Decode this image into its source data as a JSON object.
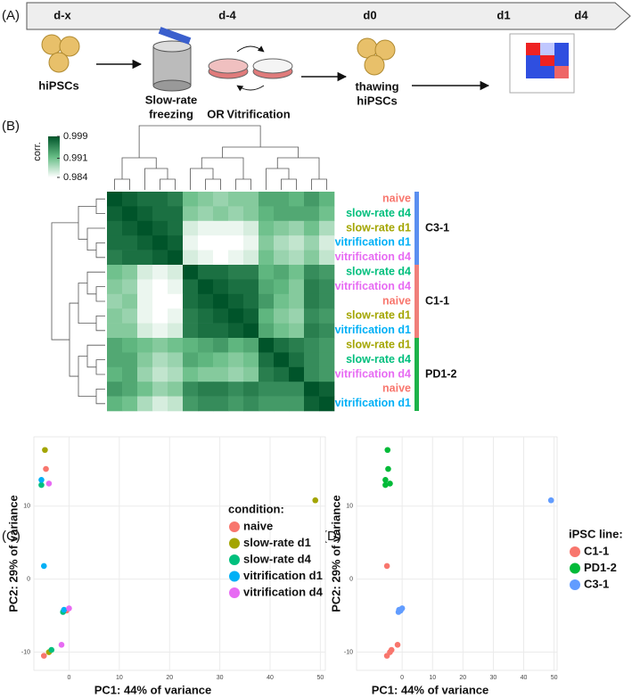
{
  "panel_a": {
    "label": "(A)",
    "timeline": [
      "d-x",
      "d-4",
      "d0",
      "d1",
      "d4"
    ],
    "start": "hiPSCs",
    "freezing": [
      "Slow-rate",
      "freezing"
    ],
    "or": "OR",
    "vitrification": "Vitrification",
    "thawing": [
      "thawing",
      "hiPSCs"
    ]
  },
  "chart_data": [
    {
      "type": "heatmap",
      "panel": "(B)",
      "colorbar_title": "corr.",
      "clim": [
        0.984,
        0.999
      ],
      "cticks": [
        0.999,
        0.991,
        0.984
      ],
      "colors": [
        "#ffffff",
        "#66bd85",
        "#00542a"
      ],
      "groups": [
        {
          "name": "C3-1",
          "color": "#5b8ff0",
          "categories": [
            "naive",
            "slow-rate d4",
            "slow-rate d1",
            "vitrification d1",
            "vitrification d4"
          ],
          "label_colors": [
            "#f8766d",
            "#00bf7d",
            "#a3a500",
            "#00b0f6",
            "#e76bf3"
          ],
          "values": [
            [
              0.999,
              0.998,
              0.997,
              0.997,
              0.996,
              0.991,
              0.99,
              0.989,
              0.99,
              0.99,
              0.993,
              0.993,
              0.992,
              0.994,
              0.992
            ],
            [
              0.998,
              0.999,
              0.998,
              0.997,
              0.997,
              0.99,
              0.989,
              0.99,
              0.989,
              0.99,
              0.992,
              0.993,
              0.993,
              0.993,
              0.991
            ],
            [
              0.997,
              0.998,
              0.999,
              0.998,
              0.997,
              0.986,
              0.985,
              0.985,
              0.985,
              0.986,
              0.991,
              0.99,
              0.989,
              0.991,
              0.988
            ],
            [
              0.997,
              0.997,
              0.998,
              0.999,
              0.998,
              0.985,
              0.984,
              0.984,
              0.984,
              0.985,
              0.99,
              0.988,
              0.987,
              0.989,
              0.986
            ],
            [
              0.996,
              0.997,
              0.997,
              0.998,
              0.999,
              0.986,
              0.985,
              0.984,
              0.985,
              0.986,
              0.991,
              0.989,
              0.988,
              0.99,
              0.987
            ]
          ]
        },
        {
          "name": "C1-1",
          "color": "#f07f7a",
          "categories": [
            "slow-rate d4",
            "vitrification d4",
            "naive",
            "slow-rate d1",
            "vitrification d1"
          ],
          "label_colors": [
            "#00bf7d",
            "#e76bf3",
            "#f8766d",
            "#a3a500",
            "#00b0f6"
          ],
          "values": [
            [
              0.991,
              0.99,
              0.986,
              0.985,
              0.986,
              0.999,
              0.997,
              0.997,
              0.996,
              0.996,
              0.992,
              0.993,
              0.991,
              0.995,
              0.994
            ],
            [
              0.99,
              0.989,
              0.985,
              0.984,
              0.985,
              0.997,
              0.999,
              0.998,
              0.997,
              0.997,
              0.993,
              0.992,
              0.99,
              0.996,
              0.995
            ],
            [
              0.989,
              0.99,
              0.985,
              0.984,
              0.984,
              0.997,
              0.998,
              0.999,
              0.998,
              0.997,
              0.994,
              0.991,
              0.99,
              0.996,
              0.995
            ],
            [
              0.99,
              0.989,
              0.985,
              0.984,
              0.985,
              0.996,
              0.997,
              0.998,
              0.999,
              0.998,
              0.992,
              0.99,
              0.989,
              0.995,
              0.994
            ],
            [
              0.99,
              0.99,
              0.986,
              0.985,
              0.986,
              0.996,
              0.997,
              0.997,
              0.998,
              0.999,
              0.993,
              0.991,
              0.99,
              0.996,
              0.995
            ]
          ]
        },
        {
          "name": "PD1-2",
          "color": "#1db34a",
          "categories": [
            "slow-rate d1",
            "slow-rate d4",
            "vitrification d4",
            "naive",
            "vitrification d1"
          ],
          "label_colors": [
            "#a3a500",
            "#00bf7d",
            "#e76bf3",
            "#f8766d",
            "#00b0f6"
          ],
          "values": [
            [
              0.993,
              0.992,
              0.991,
              0.99,
              0.991,
              0.992,
              0.993,
              0.994,
              0.992,
              0.993,
              0.999,
              0.997,
              0.996,
              0.995,
              0.994
            ],
            [
              0.993,
              0.993,
              0.99,
              0.988,
              0.989,
              0.993,
              0.992,
              0.991,
              0.99,
              0.991,
              0.997,
              0.999,
              0.997,
              0.995,
              0.994
            ],
            [
              0.992,
              0.993,
              0.989,
              0.987,
              0.988,
              0.991,
              0.99,
              0.99,
              0.989,
              0.99,
              0.996,
              0.997,
              0.999,
              0.995,
              0.994
            ],
            [
              0.994,
              0.993,
              0.991,
              0.989,
              0.99,
              0.995,
              0.996,
              0.996,
              0.995,
              0.996,
              0.995,
              0.995,
              0.995,
              0.999,
              0.998
            ],
            [
              0.992,
              0.991,
              0.988,
              0.986,
              0.987,
              0.994,
              0.995,
              0.995,
              0.994,
              0.995,
              0.994,
              0.994,
              0.994,
              0.998,
              0.999
            ]
          ]
        }
      ]
    },
    {
      "type": "scatter",
      "panel": "(C)",
      "xlabel": "PC1: 44% of variance",
      "ylabel": "PC2: 29% of variance",
      "legend_title": "condition:",
      "xlim": [
        -7,
        51
      ],
      "ylim": [
        -12.5,
        19.5
      ],
      "xticks": [
        0,
        10,
        20,
        30,
        40,
        50
      ],
      "yticks": [
        -10,
        0,
        10
      ],
      "grid": true,
      "series": [
        {
          "name": "naive",
          "color": "#f8766d",
          "x": [
            -4.6,
            -0.5,
            -5.0
          ],
          "y": [
            15.1,
            -4.3,
            -10.5
          ]
        },
        {
          "name": "slow-rate d1",
          "color": "#a3a500",
          "x": [
            -4.8,
            49,
            -4.0
          ],
          "y": [
            17.7,
            10.8,
            -10.0
          ]
        },
        {
          "name": "slow-rate d4",
          "color": "#00bf7d",
          "x": [
            -5.5,
            -1.2,
            -3.5
          ],
          "y": [
            12.9,
            -4.5,
            -9.7
          ]
        },
        {
          "name": "vitrification d1",
          "color": "#00b0f6",
          "x": [
            -5.5,
            -1.0,
            -5.0
          ],
          "y": [
            13.6,
            -4.2,
            1.8
          ]
        },
        {
          "name": "vitrification d4",
          "color": "#e76bf3",
          "x": [
            -4.0,
            0.0,
            -1.5
          ],
          "y": [
            13.1,
            -4.0,
            -9.0
          ]
        }
      ]
    },
    {
      "type": "scatter",
      "panel": "(D)",
      "xlabel": "PC1: 44% of variance",
      "ylabel": "PC2: 29% of variance",
      "legend_title": "iPSC line:",
      "xlim": [
        -15,
        51
      ],
      "ylim": [
        -12.5,
        19.5
      ],
      "xticks": [
        0,
        10,
        20,
        30,
        40,
        50
      ],
      "yticks": [
        -10,
        0,
        10
      ],
      "grid": true,
      "series": [
        {
          "name": "C1-1",
          "color": "#f8766d",
          "x": [
            -5.0,
            -4.0,
            -3.5,
            -5.0,
            -1.5
          ],
          "y": [
            -10.5,
            -10.0,
            -9.7,
            1.8,
            -9.0
          ]
        },
        {
          "name": "PD1-2",
          "color": "#00ba38",
          "x": [
            -4.6,
            -4.8,
            -5.5,
            -5.5,
            -4.0
          ],
          "y": [
            15.1,
            17.7,
            12.9,
            13.6,
            13.1
          ]
        },
        {
          "name": "C3-1",
          "color": "#619cff",
          "x": [
            -0.5,
            49,
            -1.2,
            -1.0,
            0.0
          ],
          "y": [
            -4.3,
            10.8,
            -4.5,
            -4.2,
            -4.0
          ]
        }
      ]
    }
  ]
}
